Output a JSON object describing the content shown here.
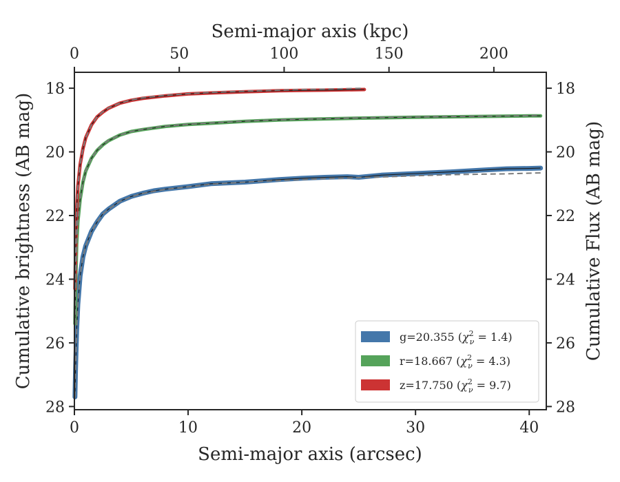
{
  "chart_data": {
    "type": "line",
    "xlabel": "Semi-major axis (arcsec)",
    "ylabel": "Cumulative brightness (AB mag)",
    "top_xlabel": "Semi-major axis (kpc)",
    "right_ylabel": "Cumulative Flux (AB mag)",
    "xlim": [
      0,
      41.5
    ],
    "ylim": [
      28.1,
      17.5
    ],
    "y_inverted": true,
    "top_xlim": [
      0,
      225
    ],
    "x_ticks": [
      0,
      10,
      20,
      30,
      40
    ],
    "x_tick_labels": [
      "0",
      "10",
      "20",
      "30",
      "40"
    ],
    "y_ticks": [
      18,
      20,
      22,
      24,
      26,
      28
    ],
    "y_tick_labels": [
      "18",
      "20",
      "22",
      "24",
      "26",
      "28"
    ],
    "top_x_ticks": [
      0,
      50,
      100,
      150,
      200
    ],
    "top_x_tick_labels": [
      "0",
      "50",
      "100",
      "150",
      "200"
    ],
    "legend_position": "lower-right",
    "grid": false,
    "series": [
      {
        "name": "g=20.355",
        "chi2_value": "1.4",
        "color": "#4477aa",
        "x": [
          0.05,
          0.1,
          0.2,
          0.3,
          0.5,
          0.75,
          1.0,
          1.5,
          2.0,
          2.5,
          3.0,
          4.0,
          5.0,
          6.0,
          7.0,
          8.0,
          10.0,
          12.0,
          15.0,
          18.0,
          20.0,
          22.0,
          24.0,
          25.0,
          27.0,
          30.0,
          33.0,
          36.0,
          38.0,
          40.0,
          41.0
        ],
        "y": [
          27.7,
          26.8,
          25.6,
          24.8,
          23.9,
          23.3,
          22.95,
          22.5,
          22.2,
          21.95,
          21.8,
          21.55,
          21.4,
          21.3,
          21.22,
          21.17,
          21.09,
          21.0,
          20.95,
          20.87,
          20.83,
          20.8,
          20.78,
          20.8,
          20.73,
          20.68,
          20.63,
          20.57,
          20.53,
          20.52,
          20.51
        ],
        "model_y": [
          27.7,
          26.8,
          25.6,
          24.8,
          23.9,
          23.3,
          22.95,
          22.5,
          22.2,
          21.95,
          21.8,
          21.56,
          21.41,
          21.31,
          21.24,
          21.18,
          21.1,
          21.02,
          20.95,
          20.9,
          20.87,
          20.84,
          20.82,
          20.81,
          20.79,
          20.75,
          20.72,
          20.7,
          20.69,
          20.67,
          20.66
        ]
      },
      {
        "name": "r=18.667",
        "chi2_value": "4.3",
        "color": "#55a35a",
        "x": [
          0.05,
          0.1,
          0.2,
          0.3,
          0.5,
          0.75,
          1.0,
          1.5,
          2.0,
          2.5,
          3.0,
          4.0,
          5.0,
          6.0,
          8.0,
          10.0,
          12.0,
          15.0,
          18.0,
          20.0,
          25.0,
          30.0,
          35.0,
          40.0,
          41.0
        ],
        "y": [
          25.4,
          24.3,
          22.9,
          22.2,
          21.5,
          20.95,
          20.6,
          20.2,
          19.95,
          19.78,
          19.65,
          19.47,
          19.36,
          19.3,
          19.2,
          19.14,
          19.1,
          19.04,
          19.0,
          18.98,
          18.94,
          18.91,
          18.89,
          18.87,
          18.87
        ],
        "model_y": [
          25.4,
          24.3,
          22.9,
          22.2,
          21.5,
          20.95,
          20.6,
          20.2,
          19.94,
          19.77,
          19.64,
          19.47,
          19.36,
          19.29,
          19.19,
          19.13,
          19.09,
          19.03,
          18.99,
          18.97,
          18.93,
          18.9,
          18.88,
          18.86,
          18.85
        ]
      },
      {
        "name": "z=17.750",
        "chi2_value": "9.7",
        "color": "#cc3333",
        "x": [
          0.05,
          0.1,
          0.2,
          0.3,
          0.5,
          0.75,
          1.0,
          1.5,
          2.0,
          2.5,
          3.0,
          4.0,
          5.0,
          6.0,
          8.0,
          10.0,
          12.0,
          15.0,
          18.0,
          20.0,
          22.0,
          25.5
        ],
        "y": [
          24.3,
          23.2,
          21.8,
          21.1,
          20.4,
          19.9,
          19.55,
          19.15,
          18.9,
          18.75,
          18.63,
          18.47,
          18.38,
          18.32,
          18.24,
          18.18,
          18.15,
          18.11,
          18.08,
          18.07,
          18.06,
          18.04
        ],
        "model_y": [
          24.3,
          23.2,
          21.8,
          21.1,
          20.4,
          19.9,
          19.55,
          19.15,
          18.9,
          18.74,
          18.62,
          18.47,
          18.37,
          18.3,
          18.22,
          18.17,
          18.13,
          18.09,
          18.06,
          18.04,
          18.03,
          18.0
        ]
      }
    ],
    "legend": [
      {
        "label": "g=20.355 (χ²ν = 1.4)",
        "color": "#4477aa"
      },
      {
        "label": "r=18.667 (χ²ν = 4.3)",
        "color": "#55a35a"
      },
      {
        "label": "z=17.750 (χ²ν = 9.7)",
        "color": "#cc3333"
      }
    ]
  }
}
